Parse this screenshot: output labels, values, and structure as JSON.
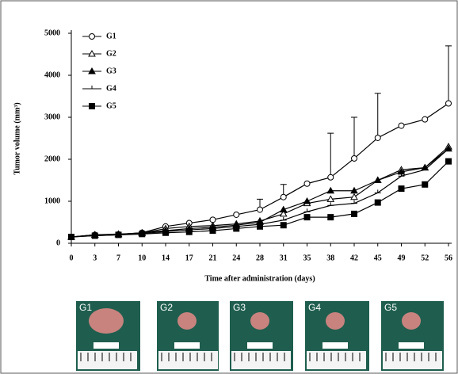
{
  "chart_data": {
    "type": "line",
    "y_label": "Tumor volume (mm³)",
    "x_label": "Time after administration (days)",
    "categories": [
      "0",
      "3",
      "7",
      "10",
      "14",
      "17",
      "21",
      "24",
      "28",
      "31",
      "35",
      "38",
      "42",
      "45",
      "49",
      "52",
      "56"
    ],
    "ylim": [
      0,
      5000
    ],
    "yticks": [
      0,
      1000,
      2000,
      3000,
      4000,
      5000
    ],
    "legend": "top-left",
    "series": [
      {
        "name": "G1",
        "color": "#000000",
        "marker": "open-circle",
        "values": [
          150,
          200,
          210,
          250,
          400,
          480,
          560,
          680,
          800,
          1100,
          1420,
          1570,
          2020,
          2510,
          2800,
          2950,
          3330
        ],
        "errors": [
          null,
          null,
          null,
          null,
          null,
          null,
          null,
          null,
          250,
          300,
          null,
          1050,
          980,
          1060,
          null,
          null,
          1370
        ]
      },
      {
        "name": "G2",
        "color": "#000000",
        "marker": "open-triangle",
        "values": [
          150,
          200,
          220,
          240,
          350,
          400,
          420,
          460,
          530,
          700,
          950,
          1050,
          1100,
          1500,
          1750,
          1800,
          2300
        ]
      },
      {
        "name": "G3",
        "color": "#000000",
        "marker": "filled-triangle",
        "values": [
          150,
          200,
          210,
          250,
          300,
          350,
          380,
          430,
          500,
          800,
          1000,
          1250,
          1250,
          1500,
          1700,
          1800,
          2250
        ]
      },
      {
        "name": "G4",
        "color": "#000000",
        "marker": "dash",
        "values": [
          150,
          180,
          200,
          230,
          280,
          320,
          350,
          400,
          450,
          550,
          750,
          900,
          950,
          1200,
          1600,
          1750,
          2250
        ]
      },
      {
        "name": "G5",
        "color": "#000000",
        "marker": "filled-square",
        "values": [
          150,
          180,
          200,
          220,
          250,
          270,
          300,
          350,
          400,
          430,
          620,
          620,
          700,
          970,
          1300,
          1400,
          1950
        ]
      }
    ]
  },
  "photo_labels": [
    "G1",
    "G2",
    "G3",
    "G4",
    "G5"
  ]
}
